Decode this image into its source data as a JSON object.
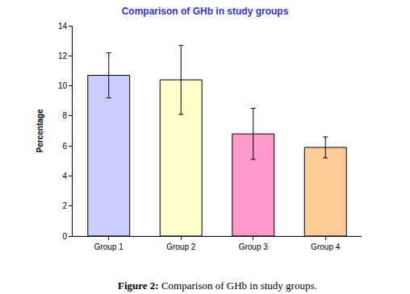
{
  "chart_data": {
    "type": "bar",
    "title": "Comparison of GHb in study groups",
    "y_label": "Percentage",
    "categories": [
      "Group 1",
      "Group 2",
      "Group 3",
      "Group 4"
    ],
    "values": [
      10.7,
      10.4,
      6.8,
      5.9
    ],
    "errors": [
      1.5,
      2.3,
      1.7,
      0.7
    ],
    "colors": [
      "#ccccff",
      "#ffffcc",
      "#ff99cc",
      "#ffcc99"
    ],
    "ylim": [
      0,
      14
    ],
    "yticks": [
      0,
      2,
      4,
      6,
      8,
      10,
      12,
      14
    ],
    "grid": false,
    "caption": {
      "label": "Figure 2:",
      "text": "Comparison of GHb in study groups."
    }
  }
}
